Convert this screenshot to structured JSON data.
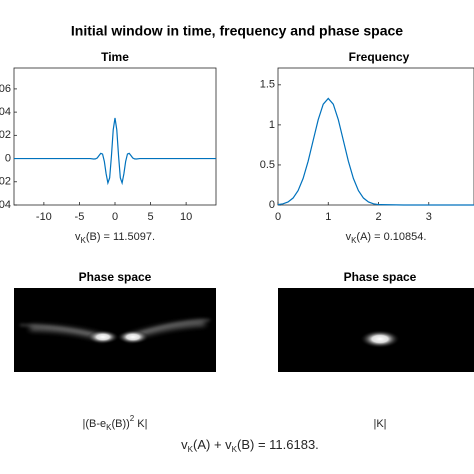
{
  "title": "Initial window in time, frequency and phase space",
  "chart_data": [
    {
      "type": "line",
      "title": "Time",
      "xlabel": [
        "v",
        "K",
        "(B) = 11.5097."
      ],
      "x": [
        -14.2,
        -4,
        -3.5,
        -3,
        -2.75,
        -2.5,
        -2.25,
        -2,
        -1.75,
        -1.5,
        -1.25,
        -1,
        -0.75,
        -0.5,
        -0.25,
        0,
        0.25,
        0.5,
        0.75,
        1,
        1.25,
        1.5,
        1.75,
        2,
        2.25,
        2.5,
        2.75,
        3,
        3.5,
        4,
        14.2
      ],
      "series": [
        {
          "color": "#0072bd",
          "values": [
            0,
            0,
            0,
            -0.0004,
            -0.0003,
            0.0005,
            0.0025,
            0.0045,
            0.0039,
            -0.0024,
            -0.0131,
            -0.021,
            -0.0166,
            0.0022,
            0.0248,
            0.035,
            0.0248,
            0.0022,
            -0.0166,
            -0.021,
            -0.0131,
            -0.0024,
            0.0039,
            0.0045,
            0.0025,
            0.0005,
            -0.0003,
            -0.0004,
            0,
            0,
            0
          ]
        }
      ],
      "xlim": [
        -14.2,
        14.2
      ],
      "xticks": [
        -10,
        -5,
        0,
        5,
        10
      ],
      "ylim": [
        -0.04,
        0.078
      ],
      "yticks": [
        {
          "value": 0.06,
          "label": "06"
        },
        {
          "value": 0.04,
          "label": "04"
        },
        {
          "value": 0.02,
          "label": "02"
        },
        0,
        {
          "value": -0.02,
          "label": "02"
        },
        {
          "value": -0.04,
          "label": "04"
        }
      ]
    },
    {
      "type": "line",
      "title": "Frequency",
      "xlabel": [
        "v",
        "K",
        "(A) = 0.10854."
      ],
      "x": [
        0,
        0.1,
        0.2,
        0.3,
        0.4,
        0.5,
        0.6,
        0.7,
        0.8,
        0.9,
        1,
        1.1,
        1.2,
        1.3,
        1.4,
        1.5,
        1.6,
        1.7,
        1.8,
        1.9,
        2,
        2.5,
        3.9
      ],
      "series": [
        {
          "color": "#0072bd",
          "values": [
            0.005,
            0.015,
            0.038,
            0.087,
            0.18,
            0.332,
            0.547,
            0.807,
            1.065,
            1.258,
            1.33,
            1.258,
            1.065,
            0.807,
            0.547,
            0.332,
            0.18,
            0.087,
            0.038,
            0.015,
            0.005,
            0,
            0
          ]
        }
      ],
      "xlim": [
        0,
        3.9
      ],
      "xticks": [
        0,
        1,
        2,
        3
      ],
      "ylim": [
        0,
        1.71
      ],
      "yticks": [
        0,
        0.5,
        1,
        1.5
      ]
    },
    {
      "type": "image",
      "title": "Phase space",
      "xlabel": [
        "|(B-e",
        "K",
        "(B))",
        "2",
        " K|"
      ]
    },
    {
      "type": "image",
      "title": "Phase space",
      "xlabel": [
        "|K|"
      ]
    }
  ],
  "footer": [
    "v",
    "K",
    "(A) + v",
    "K",
    "(B) = 11.6183."
  ]
}
